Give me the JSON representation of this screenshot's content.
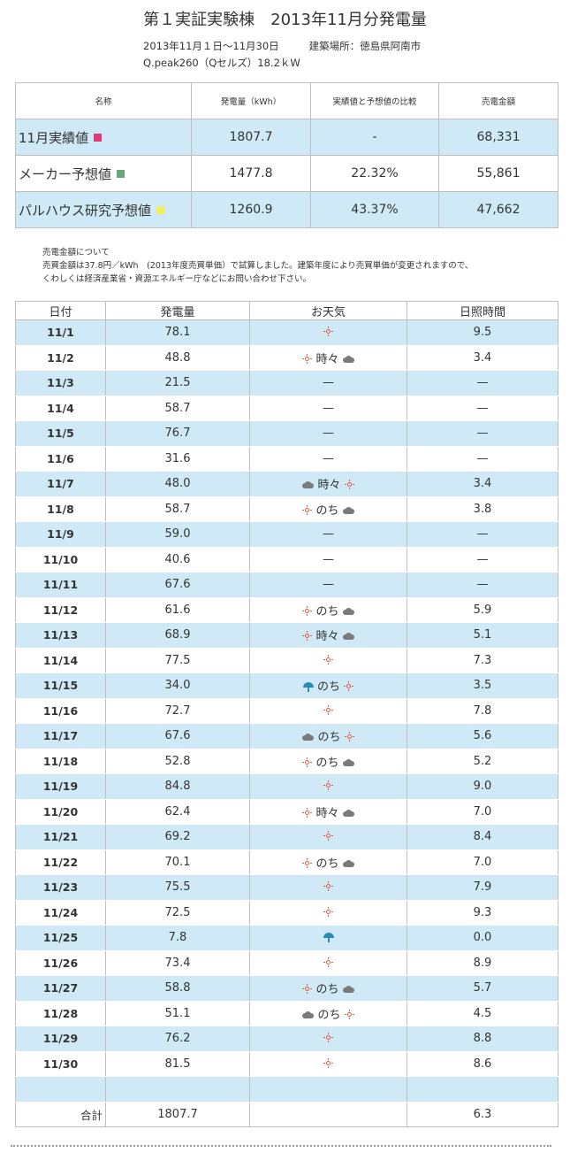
{
  "title": "第１実証実験棟　2013年11月分発電量",
  "period": "2013年11月１日～11月30日",
  "location": "建築場所：徳島県阿南市",
  "panel": "Q.peak260（Qセルズ）18.2ｋW",
  "summary": {
    "headers": [
      "名称",
      "発電量（kWh）",
      "実績値と予想値の比較",
      "売電金額"
    ],
    "rows": [
      {
        "name": "11月実績値",
        "kwh": "1807.7",
        "compare": "-",
        "amount": "68,331",
        "color": "#e03a7a"
      },
      {
        "name": "メーカー予想値",
        "kwh": "1477.8",
        "compare": "22.32%",
        "amount": "55,861",
        "color": "#6aa67a"
      },
      {
        "name": "パルハウス研究予想値",
        "kwh": "1260.9",
        "compare": "43.37%",
        "amount": "47,662",
        "color": "#f5ee5a"
      }
    ]
  },
  "notes": {
    "line1": "売電金額について",
    "line2": "売買金額は37.8円／kWh　(2013年度売買単価）で試算しました。建築年度により売買単価が変更されますので、",
    "line3": "くわしくは経済産業省・資源エネルギー庁などにお問い合わせ下さい。"
  },
  "daily": {
    "headers": [
      "日付",
      "発電量",
      "お天気",
      "日照時間"
    ],
    "rows": [
      {
        "date": "11/1",
        "kwh": "78.1",
        "weather": [
          {
            "icon": "sun"
          }
        ],
        "sun": "9.5"
      },
      {
        "date": "11/2",
        "kwh": "48.8",
        "weather": [
          {
            "icon": "sun"
          },
          {
            "text": "時々"
          },
          {
            "icon": "cloud"
          }
        ],
        "sun": "3.4"
      },
      {
        "date": "11/3",
        "kwh": "21.5",
        "weather": [
          {
            "text": "—"
          }
        ],
        "sun": "—"
      },
      {
        "date": "11/4",
        "kwh": "58.7",
        "weather": [
          {
            "text": "—"
          }
        ],
        "sun": "—"
      },
      {
        "date": "11/5",
        "kwh": "76.7",
        "weather": [
          {
            "text": "—"
          }
        ],
        "sun": "—"
      },
      {
        "date": "11/6",
        "kwh": "31.6",
        "weather": [
          {
            "text": "—"
          }
        ],
        "sun": "—"
      },
      {
        "date": "11/7",
        "kwh": "48.0",
        "weather": [
          {
            "icon": "cloud"
          },
          {
            "text": "時々"
          },
          {
            "icon": "sun"
          }
        ],
        "sun": "3.4"
      },
      {
        "date": "11/8",
        "kwh": "58.7",
        "weather": [
          {
            "icon": "sun"
          },
          {
            "text": "のち"
          },
          {
            "icon": "cloud"
          }
        ],
        "sun": "3.8"
      },
      {
        "date": "11/9",
        "kwh": "59.0",
        "weather": [
          {
            "text": "—"
          }
        ],
        "sun": "—"
      },
      {
        "date": "11/10",
        "kwh": "40.6",
        "weather": [
          {
            "text": "—"
          }
        ],
        "sun": "—"
      },
      {
        "date": "11/11",
        "kwh": "67.6",
        "weather": [
          {
            "text": "—"
          }
        ],
        "sun": "—"
      },
      {
        "date": "11/12",
        "kwh": "61.6",
        "weather": [
          {
            "icon": "sun"
          },
          {
            "text": "のち"
          },
          {
            "icon": "cloud"
          }
        ],
        "sun": "5.9"
      },
      {
        "date": "11/13",
        "kwh": "68.9",
        "weather": [
          {
            "icon": "sun"
          },
          {
            "text": "時々"
          },
          {
            "icon": "cloud"
          }
        ],
        "sun": "5.1"
      },
      {
        "date": "11/14",
        "kwh": "77.5",
        "weather": [
          {
            "icon": "sun"
          }
        ],
        "sun": "7.3"
      },
      {
        "date": "11/15",
        "kwh": "34.0",
        "weather": [
          {
            "icon": "umbrella"
          },
          {
            "text": "のち"
          },
          {
            "icon": "sun"
          }
        ],
        "sun": "3.5"
      },
      {
        "date": "11/16",
        "kwh": "72.7",
        "weather": [
          {
            "icon": "sun"
          }
        ],
        "sun": "7.8"
      },
      {
        "date": "11/17",
        "kwh": "67.6",
        "weather": [
          {
            "icon": "cloud"
          },
          {
            "text": "のち"
          },
          {
            "icon": "sun"
          }
        ],
        "sun": "5.6"
      },
      {
        "date": "11/18",
        "kwh": "52.8",
        "weather": [
          {
            "icon": "sun"
          },
          {
            "text": "のち"
          },
          {
            "icon": "cloud"
          }
        ],
        "sun": "5.2"
      },
      {
        "date": "11/19",
        "kwh": "84.8",
        "weather": [
          {
            "icon": "sun"
          }
        ],
        "sun": "9.0"
      },
      {
        "date": "11/20",
        "kwh": "62.4",
        "weather": [
          {
            "icon": "sun"
          },
          {
            "text": "時々"
          },
          {
            "icon": "cloud"
          }
        ],
        "sun": "7.0"
      },
      {
        "date": "11/21",
        "kwh": "69.2",
        "weather": [
          {
            "icon": "sun"
          }
        ],
        "sun": "8.4"
      },
      {
        "date": "11/22",
        "kwh": "70.1",
        "weather": [
          {
            "icon": "sun"
          },
          {
            "text": "のち"
          },
          {
            "icon": "cloud"
          }
        ],
        "sun": "7.0"
      },
      {
        "date": "11/23",
        "kwh": "75.5",
        "weather": [
          {
            "icon": "sun"
          }
        ],
        "sun": "7.9"
      },
      {
        "date": "11/24",
        "kwh": "72.5",
        "weather": [
          {
            "icon": "sun"
          }
        ],
        "sun": "9.3"
      },
      {
        "date": "11/25",
        "kwh": "7.8",
        "weather": [
          {
            "icon": "umbrella"
          }
        ],
        "sun": "0.0"
      },
      {
        "date": "11/26",
        "kwh": "73.4",
        "weather": [
          {
            "icon": "sun"
          }
        ],
        "sun": "8.9"
      },
      {
        "date": "11/27",
        "kwh": "58.8",
        "weather": [
          {
            "icon": "sun"
          },
          {
            "text": "のち"
          },
          {
            "icon": "cloud"
          }
        ],
        "sun": "5.7"
      },
      {
        "date": "11/28",
        "kwh": "51.1",
        "weather": [
          {
            "icon": "cloud"
          },
          {
            "text": "のち"
          },
          {
            "icon": "sun"
          }
        ],
        "sun": "4.5"
      },
      {
        "date": "11/29",
        "kwh": "76.2",
        "weather": [
          {
            "icon": "sun"
          }
        ],
        "sun": "8.8"
      },
      {
        "date": "11/30",
        "kwh": "81.5",
        "weather": [
          {
            "icon": "sun"
          }
        ],
        "sun": "8.6"
      }
    ],
    "total": {
      "label": "合計",
      "kwh": "1807.7",
      "sun": "6.3"
    }
  }
}
